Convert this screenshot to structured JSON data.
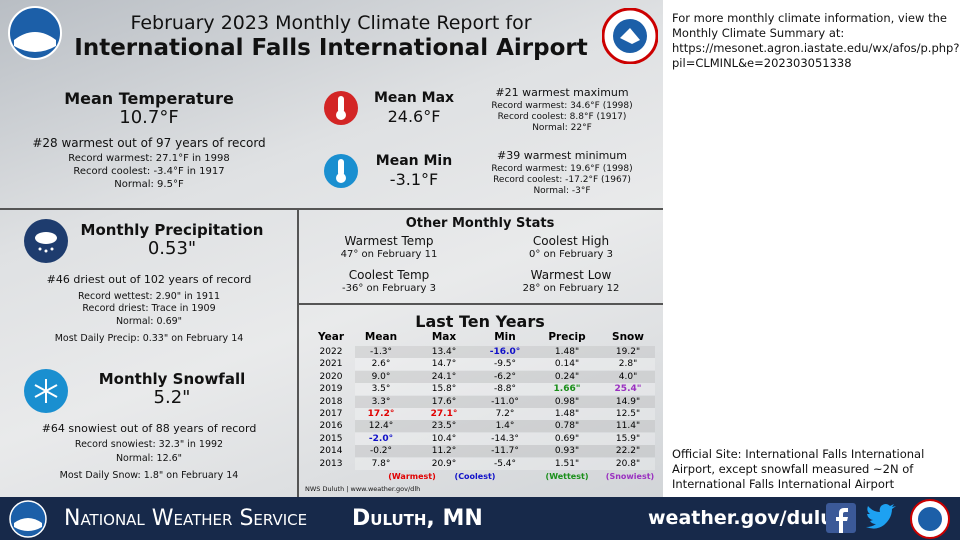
{
  "header": {
    "title_line1": "February 2023 Monthly Climate Report for",
    "title_line2": "International Falls International Airport"
  },
  "side_note": "For more monthly climate information, view the Monthly Climate Summary at: https://mesonet.agron.iastate.edu/wx/afos/p.php?pil=CLMINL&e=202303051338",
  "official_site": "Official Site: International Falls International Airport, except snowfall measured ~2N of International Falls International Airport",
  "mean_temperature": {
    "heading": "Mean Temperature",
    "value": "10.7°F",
    "rank": "#28 warmest out of 97 years of record",
    "lines": [
      "Record warmest: 27.1°F in 1998",
      "Record coolest: -3.4°F in 1917",
      "Normal: 9.5°F"
    ]
  },
  "mean_max": {
    "heading": "Mean Max",
    "value": "24.6°F",
    "rank": "#21 warmest maximum",
    "lines": [
      "Record warmest: 34.6°F (1998)",
      "Record coolest: 8.8°F (1917)",
      "Normal: 22°F"
    ]
  },
  "mean_min": {
    "heading": "Mean Min",
    "value": "-3.1°F",
    "rank": "#39 warmest minimum",
    "lines": [
      "Record warmest: 19.6°F (1998)",
      "Record coolest: -17.2°F (1967)",
      "Normal: -3°F"
    ]
  },
  "precipitation": {
    "heading": "Monthly Precipitation",
    "value": "0.53\"",
    "rank": "#46 driest out of 102 years of record",
    "lines": [
      "Record wettest: 2.90\" in 1911",
      "Record driest: Trace in 1909",
      "Normal: 0.69\""
    ],
    "most_daily": "Most Daily Precip: 0.33\" on February 14"
  },
  "snowfall": {
    "heading": "Monthly Snowfall",
    "value": "5.2\"",
    "rank": "#64 snowiest out of 88 years of record",
    "lines": [
      "Record snowiest: 32.3\" in 1992",
      "Normal: 12.6\""
    ],
    "most_daily": "Most Daily Snow: 1.8\" on February 14"
  },
  "other_stats": {
    "title": "Other Monthly Stats",
    "items": [
      {
        "label": "Warmest Temp",
        "value": "47° on February 11"
      },
      {
        "label": "Coolest High",
        "value": "0° on February 3"
      },
      {
        "label": "Coolest Temp",
        "value": "-36° on February 3"
      },
      {
        "label": "Warmest Low",
        "value": "28° on February 12"
      }
    ]
  },
  "last_ten_years": {
    "title": "Last Ten Years",
    "columns": [
      "Year",
      "Mean",
      "Max",
      "Min",
      "Precip",
      "Snow"
    ],
    "rows": [
      [
        "2022",
        "-1.3°",
        "13.4°",
        "-16.0°",
        "1.48\"",
        "19.2\""
      ],
      [
        "2021",
        "2.6°",
        "14.7°",
        "-9.5°",
        "0.14\"",
        "2.8\""
      ],
      [
        "2020",
        "9.0°",
        "24.1°",
        "-6.2°",
        "0.24\"",
        "4.0\""
      ],
      [
        "2019",
        "3.5°",
        "15.8°",
        "-8.8°",
        "1.66\"",
        "25.4\""
      ],
      [
        "2018",
        "3.3°",
        "17.6°",
        "-11.0°",
        "0.98\"",
        "14.9\""
      ],
      [
        "2017",
        "17.2°",
        "27.1°",
        "7.2°",
        "1.48\"",
        "12.5\""
      ],
      [
        "2016",
        "12.4°",
        "23.5°",
        "1.4°",
        "0.78\"",
        "11.4\""
      ],
      [
        "2015",
        "-2.0°",
        "10.4°",
        "-14.3°",
        "0.69\"",
        "15.9\""
      ],
      [
        "2014",
        "-0.2°",
        "11.2°",
        "-11.7°",
        "0.93\"",
        "22.2\""
      ],
      [
        "2013",
        "7.8°",
        "20.9°",
        "-5.4°",
        "1.51\"",
        "20.8\""
      ]
    ],
    "legend": [
      "(Warmest)",
      "(Coolest)",
      "(Wettest)",
      "(Snowiest)"
    ],
    "source": "NWS Duluth | www.weather.gov/dlh"
  },
  "footer": {
    "agency": "National Weather Service",
    "office": "Duluth, MN",
    "website": "weather.gov/duluth"
  }
}
